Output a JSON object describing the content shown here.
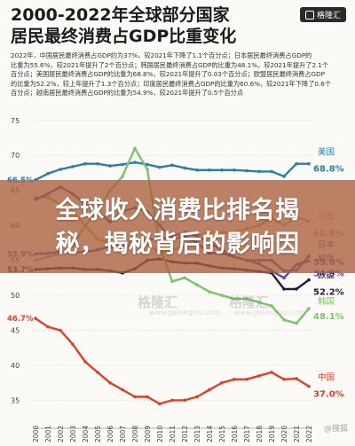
{
  "header": {
    "title_line1": "2000-2022年全球部分国家",
    "title_line2": "居民最终消费占GDP比重变化",
    "brand": "格隆汇"
  },
  "notes": [
    "2022年，中国居民最终消费占GDP约为37%，较2021年下降了1.1个百分点；日本居民最终消费占GDP的",
    "比重为55.6%，较2021年提升了2个百分点；韩国居民最终消费占GDP的比重为48.1%，较2021年提升了2.1个",
    "百分点；美国居民最终消费占GDP的比重为68.8%，较2021年提升了0.03个百分点；欧盟居民最终消费占GDP",
    "的比重为52.2%，较上年提升了1.3个百分点；印度居民最终消费占GDP的比重为60.6%，较2021年下降了0.6个",
    "百分点；越南居民最终消费占GDP的比重为54.9%，较2021年提升了0.5个百分点"
  ],
  "banner": {
    "line1": "全球收入消费比排名揭",
    "line2": "秘，揭秘背后的影响因"
  },
  "watermarks": [
    "格隆汇",
    "格隆汇",
    "www.gelonghui.com",
    "www.gelonghui.com"
  ],
  "source_tag": "@搜狐",
  "chart_data": {
    "type": "line",
    "x": [
      2000,
      2001,
      2002,
      2003,
      2004,
      2005,
      2006,
      2007,
      2008,
      2009,
      2010,
      2011,
      2012,
      2013,
      2014,
      2015,
      2016,
      2017,
      2018,
      2019,
      2020,
      2021,
      2022
    ],
    "xtick_labels": [
      "2000",
      "2001",
      "2002",
      "2003",
      "2004",
      "2005",
      "2006",
      "2007",
      "2008",
      "2009",
      "2010",
      "2011",
      "2012",
      "2013",
      "2014",
      "2015",
      "2016",
      "2017",
      "2018",
      "2019",
      "2020",
      "2021",
      "2022"
    ],
    "ylim": [
      31,
      77
    ],
    "yticks": [
      35,
      40,
      45,
      50,
      55,
      60,
      65,
      70,
      75
    ],
    "grid": true,
    "series": [
      {
        "name": "美国",
        "color": "#2b7fa3",
        "start_label": "66.5%",
        "end_label": "68.8%",
        "values": [
          66.5,
          67.4,
          68.0,
          68.4,
          68.8,
          68.8,
          68.5,
          68.7,
          69.0,
          68.7,
          68.3,
          68.6,
          68.2,
          67.9,
          67.9,
          67.9,
          67.9,
          67.8,
          67.7,
          67.7,
          67.0,
          68.8,
          68.8
        ]
      },
      {
        "name": "印度",
        "color": "#d9a25c",
        "start_label": "",
        "end_label": "60.6%",
        "values": [
          64.0,
          64.0,
          63.0,
          62.0,
          60.0,
          58.0,
          57.5,
          57.0,
          58.0,
          57.5,
          56.0,
          56.5,
          57.0,
          58.5,
          59.0,
          59.0,
          59.0,
          59.5,
          60.0,
          61.0,
          60.0,
          61.2,
          60.6
        ]
      },
      {
        "name": "日本",
        "color": "#3e5da8",
        "start_label": "55.9%",
        "end_label": "55.6%",
        "values": [
          55.9,
          56.0,
          56.2,
          56.1,
          56.2,
          56.5,
          57.0,
          56.5,
          57.5,
          58.0,
          58.0,
          58.5,
          59.0,
          58.5,
          57.5,
          56.5,
          55.5,
          55.0,
          55.0,
          55.0,
          53.5,
          53.6,
          55.6
        ]
      },
      {
        "name": "越南",
        "color": "#6b3fa0",
        "start_label": "",
        "end_label": "54.9%",
        "values": [
          63.7,
          64.5,
          65.5,
          64.5,
          63.0,
          62.0,
          60.5,
          62.0,
          62.5,
          62.0,
          60.0,
          58.0,
          58.5,
          57.5,
          56.0,
          56.0,
          55.5,
          55.0,
          54.5,
          53.5,
          52.5,
          54.4,
          54.9
        ]
      },
      {
        "name": "欧盟",
        "color": "#1e1e3a",
        "start_label": "53.7%",
        "end_label": "52.2%",
        "values": [
          53.7,
          53.8,
          53.9,
          53.9,
          53.7,
          53.7,
          53.5,
          53.2,
          53.8,
          55.0,
          55.2,
          54.8,
          54.6,
          54.6,
          54.2,
          53.9,
          53.8,
          53.6,
          53.4,
          53.2,
          50.9,
          50.9,
          52.2
        ]
      },
      {
        "name": "韩国",
        "color": "#7cc36a",
        "start_label": "",
        "end_label": "48.1%",
        "values": [
          55.0,
          55.5,
          56.0,
          57.0,
          60.0,
          62.0,
          65.0,
          67.0,
          71.0,
          68.0,
          57.0,
          52.0,
          52.5,
          51.5,
          50.5,
          50.0,
          49.5,
          49.5,
          49.0,
          48.5,
          46.5,
          46.0,
          48.1
        ]
      },
      {
        "name": "中国",
        "color": "#d8432a",
        "start_label": "46.7%",
        "end_label": "37.0%",
        "values": [
          46.7,
          45.5,
          45.0,
          43.0,
          40.5,
          39.0,
          37.5,
          36.5,
          35.5,
          35.5,
          34.5,
          35.0,
          35.0,
          35.5,
          36.5,
          37.5,
          38.0,
          38.0,
          38.5,
          39.0,
          38.0,
          38.1,
          37.0
        ]
      }
    ]
  }
}
